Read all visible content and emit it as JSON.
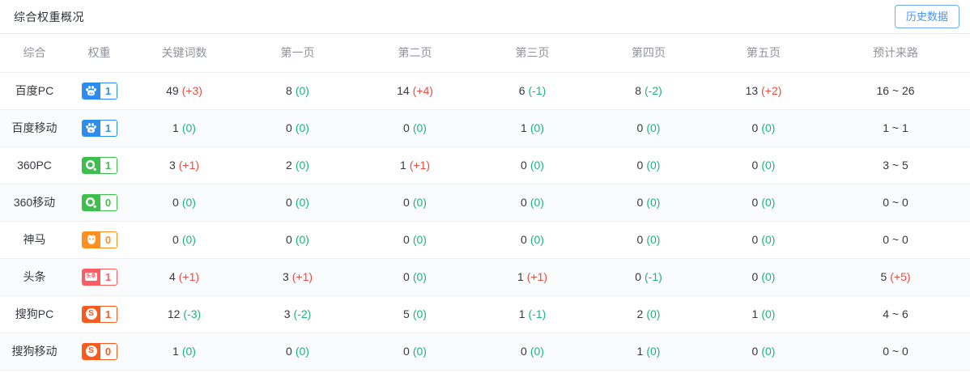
{
  "page": {
    "title": "综合权重概况",
    "history_button": "历史数据"
  },
  "colors": {
    "accent_blue": "#4a92f7",
    "up_red": "#f5483e",
    "down_green": "#1cb57c",
    "header_gray": "#909399",
    "text_dark": "#33363c",
    "border": "#ebeef5"
  },
  "table": {
    "headers": [
      "综合",
      "权重",
      "关键词数",
      "第一页",
      "第二页",
      "第三页",
      "第四页",
      "第五页",
      "预计来路"
    ],
    "rows": [
      {
        "engine": "百度PC",
        "badge": {
          "icon": "baidu-pc",
          "value": "1",
          "color": "#2d8cf0"
        },
        "cells": [
          {
            "v": "49",
            "d": "(+3)"
          },
          {
            "v": "8",
            "d": "(0)"
          },
          {
            "v": "14",
            "d": "(+4)"
          },
          {
            "v": "6",
            "d": "(-1)"
          },
          {
            "v": "8",
            "d": "(-2)"
          },
          {
            "v": "13",
            "d": "(+2)"
          }
        ],
        "estimate": {
          "v": "16 ~ 26",
          "d": null
        }
      },
      {
        "engine": "百度移动",
        "badge": {
          "icon": "baidu-mobile",
          "value": "1",
          "color": "#2d8cf0"
        },
        "cells": [
          {
            "v": "1",
            "d": "(0)"
          },
          {
            "v": "0",
            "d": "(0)"
          },
          {
            "v": "0",
            "d": "(0)"
          },
          {
            "v": "1",
            "d": "(0)"
          },
          {
            "v": "0",
            "d": "(0)"
          },
          {
            "v": "0",
            "d": "(0)"
          }
        ],
        "estimate": {
          "v": "1 ~ 1",
          "d": null
        }
      },
      {
        "engine": "360PC",
        "badge": {
          "icon": "360",
          "value": "1",
          "color": "#3cbf4c"
        },
        "cells": [
          {
            "v": "3",
            "d": "(+1)"
          },
          {
            "v": "2",
            "d": "(0)"
          },
          {
            "v": "1",
            "d": "(+1)"
          },
          {
            "v": "0",
            "d": "(0)"
          },
          {
            "v": "0",
            "d": "(0)"
          },
          {
            "v": "0",
            "d": "(0)"
          }
        ],
        "estimate": {
          "v": "3 ~ 5",
          "d": null
        }
      },
      {
        "engine": "360移动",
        "badge": {
          "icon": "360",
          "value": "0",
          "color": "#3cbf4c"
        },
        "cells": [
          {
            "v": "0",
            "d": "(0)"
          },
          {
            "v": "0",
            "d": "(0)"
          },
          {
            "v": "0",
            "d": "(0)"
          },
          {
            "v": "0",
            "d": "(0)"
          },
          {
            "v": "0",
            "d": "(0)"
          },
          {
            "v": "0",
            "d": "(0)"
          }
        ],
        "estimate": {
          "v": "0 ~ 0",
          "d": null
        }
      },
      {
        "engine": "神马",
        "badge": {
          "icon": "shenma",
          "value": "0",
          "color": "#ff8f1f"
        },
        "cells": [
          {
            "v": "0",
            "d": "(0)"
          },
          {
            "v": "0",
            "d": "(0)"
          },
          {
            "v": "0",
            "d": "(0)"
          },
          {
            "v": "0",
            "d": "(0)"
          },
          {
            "v": "0",
            "d": "(0)"
          },
          {
            "v": "0",
            "d": "(0)"
          }
        ],
        "estimate": {
          "v": "0 ~ 0",
          "d": null
        }
      },
      {
        "engine": "头条",
        "badge": {
          "icon": "toutiao",
          "value": "1",
          "color": "#fa5d64",
          "icon_label": "头条"
        },
        "cells": [
          {
            "v": "4",
            "d": "(+1)"
          },
          {
            "v": "3",
            "d": "(+1)"
          },
          {
            "v": "0",
            "d": "(0)"
          },
          {
            "v": "1",
            "d": "(+1)"
          },
          {
            "v": "0",
            "d": "(-1)"
          },
          {
            "v": "0",
            "d": "(0)"
          }
        ],
        "estimate": {
          "v": "5",
          "d": "(+5)"
        }
      },
      {
        "engine": "搜狗PC",
        "badge": {
          "icon": "sogou",
          "value": "1",
          "color": "#f95a1e",
          "icon_label": "S"
        },
        "cells": [
          {
            "v": "12",
            "d": "(-3)"
          },
          {
            "v": "3",
            "d": "(-2)"
          },
          {
            "v": "5",
            "d": "(0)"
          },
          {
            "v": "1",
            "d": "(-1)"
          },
          {
            "v": "2",
            "d": "(0)"
          },
          {
            "v": "1",
            "d": "(0)"
          }
        ],
        "estimate": {
          "v": "4 ~ 6",
          "d": null
        }
      },
      {
        "engine": "搜狗移动",
        "badge": {
          "icon": "sogou",
          "value": "0",
          "color": "#f95a1e",
          "icon_label": "S"
        },
        "cells": [
          {
            "v": "1",
            "d": "(0)"
          },
          {
            "v": "0",
            "d": "(0)"
          },
          {
            "v": "0",
            "d": "(0)"
          },
          {
            "v": "0",
            "d": "(0)"
          },
          {
            "v": "1",
            "d": "(0)"
          },
          {
            "v": "0",
            "d": "(0)"
          }
        ],
        "estimate": {
          "v": "0 ~ 0",
          "d": null
        }
      }
    ]
  }
}
